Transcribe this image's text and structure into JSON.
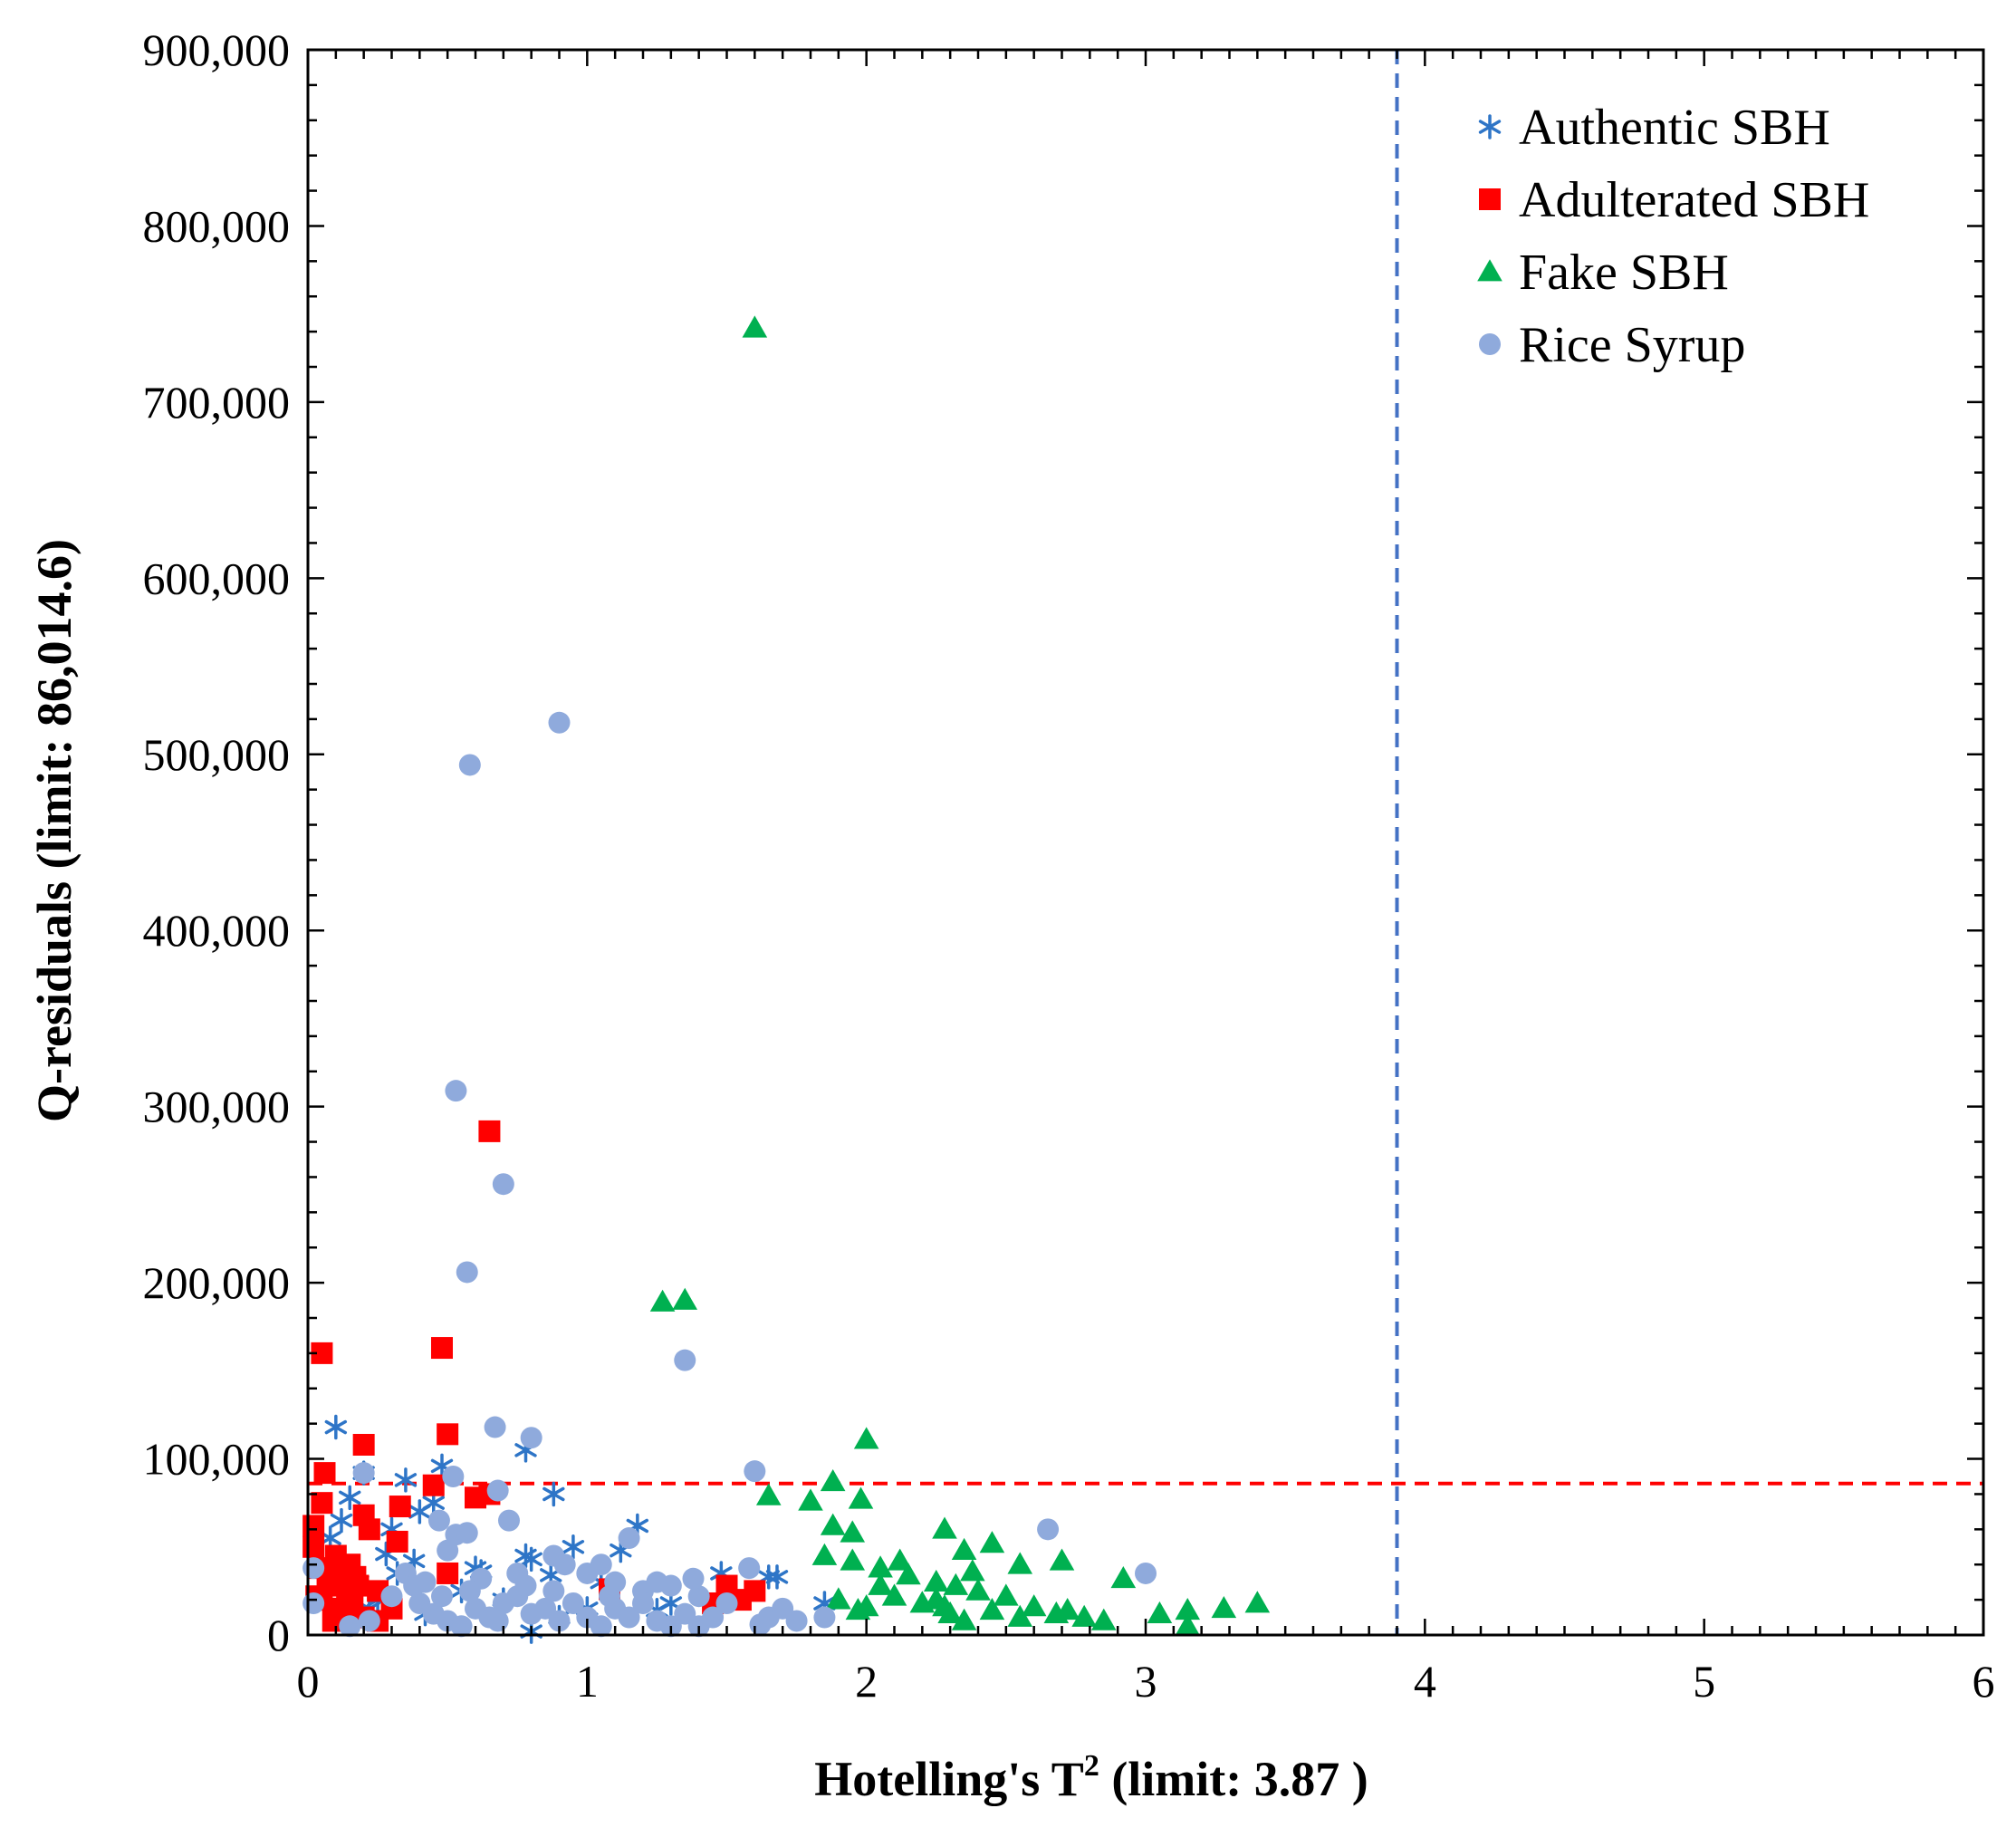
{
  "chart_data": {
    "type": "scatter",
    "title": "",
    "xlabel_main": "Hotelling's T",
    "xlabel_sup": "2",
    "xlabel_suffix": " (limit: 3.87 )",
    "ylabel": "Q-residuals (limit: 86,014.6)",
    "xlim": [
      0,
      6
    ],
    "ylim": [
      0,
      900000
    ],
    "x_ticks": [
      0,
      1,
      2,
      3,
      4,
      5,
      6
    ],
    "x_tick_labels": [
      "0",
      "1",
      "2",
      "3",
      "4",
      "5",
      "6"
    ],
    "y_ticks": [
      0,
      100000,
      200000,
      300000,
      400000,
      500000,
      600000,
      700000,
      800000,
      900000
    ],
    "y_tick_labels": [
      "0",
      "100,000",
      "200,000",
      "300,000",
      "400,000",
      "500,000",
      "600,000",
      "700,000",
      "800,000",
      "900,000"
    ],
    "grid": false,
    "legend_position": "top-right",
    "limits": {
      "t2_limit": 3.9,
      "t2_color": "#4472C4",
      "q_limit": 86014.6,
      "q_color": "#FF0000"
    },
    "series": [
      {
        "name": "Authentic SBH",
        "marker": "asterisk",
        "color": "#2E75C7",
        "points": [
          [
            0.1,
            118000
          ],
          [
            0.35,
            88000
          ],
          [
            0.15,
            78000
          ],
          [
            0.12,
            65000
          ],
          [
            0.08,
            55000
          ],
          [
            0.2,
            92000
          ],
          [
            0.3,
            60000
          ],
          [
            0.4,
            70000
          ],
          [
            0.45,
            75000
          ],
          [
            0.48,
            96000
          ],
          [
            0.6,
            38000
          ],
          [
            0.62,
            36000
          ],
          [
            0.78,
            45000
          ],
          [
            0.8,
            43000
          ],
          [
            0.78,
            105000
          ],
          [
            0.88,
            80000
          ],
          [
            0.87,
            34000
          ],
          [
            0.95,
            50000
          ],
          [
            1.05,
            30000
          ],
          [
            1.12,
            48000
          ],
          [
            1.18,
            62000
          ],
          [
            1.25,
            14000
          ],
          [
            1.3,
            18000
          ],
          [
            1.48,
            35000
          ],
          [
            1.65,
            33000
          ],
          [
            1.68,
            33000
          ],
          [
            1.85,
            18000
          ],
          [
            0.25,
            20000
          ],
          [
            0.32,
            35000
          ],
          [
            0.38,
            42000
          ],
          [
            0.22,
            15000
          ],
          [
            0.55,
            25000
          ],
          [
            0.7,
            20000
          ],
          [
            0.8,
            2000
          ],
          [
            0.9,
            10000
          ],
          [
            1.0,
            15000
          ],
          [
            0.18,
            30000
          ],
          [
            0.28,
            46000
          ],
          [
            0.42,
            12000
          ]
        ]
      },
      {
        "name": "Adulterated SBH",
        "marker": "square",
        "color": "#FF0000",
        "points": [
          [
            0.05,
            160000
          ],
          [
            0.48,
            163000
          ],
          [
            0.65,
            286000
          ],
          [
            0.5,
            114000
          ],
          [
            0.2,
            108000
          ],
          [
            0.06,
            92000
          ],
          [
            0.6,
            78000
          ],
          [
            0.65,
            80000
          ],
          [
            0.33,
            73000
          ],
          [
            0.05,
            75000
          ],
          [
            0.2,
            68000
          ],
          [
            0.22,
            60000
          ],
          [
            0.45,
            85000
          ],
          [
            0.32,
            53000
          ],
          [
            0.02,
            50000
          ],
          [
            0.1,
            45000
          ],
          [
            0.15,
            40000
          ],
          [
            0.08,
            35000
          ],
          [
            0.12,
            30000
          ],
          [
            0.18,
            28000
          ],
          [
            0.25,
            25000
          ],
          [
            0.05,
            20000
          ],
          [
            0.1,
            15000
          ],
          [
            0.15,
            12000
          ],
          [
            0.2,
            10000
          ],
          [
            0.3,
            15000
          ],
          [
            0.25,
            8000
          ],
          [
            0.03,
            22000
          ],
          [
            0.07,
            28000
          ],
          [
            0.14,
            24000
          ],
          [
            0.16,
            18000
          ],
          [
            0.09,
            8000
          ],
          [
            0.5,
            35000
          ],
          [
            1.08,
            26000
          ],
          [
            1.5,
            28000
          ],
          [
            1.55,
            20000
          ],
          [
            1.6,
            25000
          ],
          [
            1.45,
            18000
          ],
          [
            0.04,
            38000
          ],
          [
            0.02,
            62000
          ],
          [
            0.17,
            33000
          ]
        ]
      },
      {
        "name": "Fake SBH",
        "marker": "triangle",
        "color": "#00B050",
        "points": [
          [
            1.6,
            742000
          ],
          [
            1.27,
            189000
          ],
          [
            1.35,
            190000
          ],
          [
            2.0,
            111000
          ],
          [
            1.88,
            87000
          ],
          [
            1.65,
            79000
          ],
          [
            1.8,
            76000
          ],
          [
            1.98,
            77000
          ],
          [
            1.88,
            62000
          ],
          [
            1.95,
            58000
          ],
          [
            2.28,
            60000
          ],
          [
            2.45,
            52000
          ],
          [
            2.35,
            48000
          ],
          [
            2.55,
            40000
          ],
          [
            2.7,
            42000
          ],
          [
            2.05,
            38000
          ],
          [
            2.15,
            34000
          ],
          [
            2.25,
            30000
          ],
          [
            2.32,
            28000
          ],
          [
            2.4,
            25000
          ],
          [
            2.5,
            22000
          ],
          [
            2.6,
            16000
          ],
          [
            2.72,
            14000
          ],
          [
            2.85,
            8000
          ],
          [
            2.92,
            32000
          ],
          [
            3.05,
            12000
          ],
          [
            3.15,
            14000
          ],
          [
            3.28,
            15000
          ],
          [
            3.4,
            18000
          ],
          [
            3.15,
            5000
          ],
          [
            2.2,
            18000
          ],
          [
            2.3,
            12000
          ],
          [
            2.35,
            8000
          ],
          [
            2.45,
            14000
          ],
          [
            2.1,
            22000
          ],
          [
            2.0,
            16000
          ],
          [
            1.9,
            20000
          ],
          [
            2.12,
            42000
          ],
          [
            2.25,
            20000
          ],
          [
            2.38,
            36000
          ],
          [
            2.55,
            10000
          ],
          [
            2.68,
            12000
          ],
          [
            2.78,
            10000
          ],
          [
            2.28,
            16000
          ],
          [
            1.85,
            45000
          ],
          [
            1.95,
            42000
          ],
          [
            2.05,
            28000
          ],
          [
            1.97,
            14000
          ]
        ]
      },
      {
        "name": "Rice Syrup",
        "marker": "circle",
        "color": "#8FAADC",
        "points": [
          [
            0.9,
            518000
          ],
          [
            0.58,
            494000
          ],
          [
            0.53,
            309000
          ],
          [
            0.7,
            256000
          ],
          [
            0.57,
            206000
          ],
          [
            1.35,
            156000
          ],
          [
            0.67,
            118000
          ],
          [
            0.8,
            112000
          ],
          [
            1.6,
            93000
          ],
          [
            0.2,
            92000
          ],
          [
            0.52,
            90000
          ],
          [
            0.68,
            82000
          ],
          [
            0.72,
            65000
          ],
          [
            0.47,
            65000
          ],
          [
            2.65,
            60000
          ],
          [
            0.53,
            57000
          ],
          [
            0.57,
            58000
          ],
          [
            0.5,
            48000
          ],
          [
            1.15,
            55000
          ],
          [
            3.0,
            35000
          ],
          [
            0.88,
            45000
          ],
          [
            0.75,
            35000
          ],
          [
            0.92,
            40000
          ],
          [
            1.0,
            35000
          ],
          [
            1.05,
            40000
          ],
          [
            1.1,
            30000
          ],
          [
            1.2,
            25000
          ],
          [
            1.3,
            28000
          ],
          [
            1.4,
            22000
          ],
          [
            1.5,
            18000
          ],
          [
            1.58,
            38000
          ],
          [
            1.65,
            10000
          ],
          [
            1.75,
            8000
          ],
          [
            1.85,
            10000
          ],
          [
            0.02,
            38000
          ],
          [
            0.02,
            18000
          ],
          [
            0.3,
            22000
          ],
          [
            0.35,
            35000
          ],
          [
            0.4,
            18000
          ],
          [
            0.45,
            12000
          ],
          [
            0.5,
            8000
          ],
          [
            0.55,
            5000
          ],
          [
            0.6,
            15000
          ],
          [
            0.65,
            10000
          ],
          [
            0.7,
            18000
          ],
          [
            0.75,
            22000
          ],
          [
            0.8,
            12000
          ],
          [
            0.85,
            15000
          ],
          [
            0.9,
            8000
          ],
          [
            0.95,
            18000
          ],
          [
            1.0,
            10000
          ],
          [
            1.05,
            5000
          ],
          [
            1.1,
            15000
          ],
          [
            1.15,
            10000
          ],
          [
            1.2,
            18000
          ],
          [
            1.25,
            8000
          ],
          [
            1.3,
            5000
          ],
          [
            1.35,
            12000
          ],
          [
            1.4,
            5000
          ],
          [
            1.45,
            10000
          ],
          [
            0.22,
            8000
          ],
          [
            0.15,
            5000
          ],
          [
            0.38,
            28000
          ],
          [
            0.62,
            32000
          ],
          [
            0.78,
            28000
          ],
          [
            1.7,
            15000
          ],
          [
            1.25,
            30000
          ],
          [
            1.62,
            6000
          ],
          [
            0.58,
            25000
          ],
          [
            0.68,
            8000
          ],
          [
            0.88,
            25000
          ],
          [
            1.08,
            22000
          ],
          [
            0.48,
            22000
          ],
          [
            0.42,
            30000
          ],
          [
            1.38,
            32000
          ]
        ]
      }
    ]
  }
}
